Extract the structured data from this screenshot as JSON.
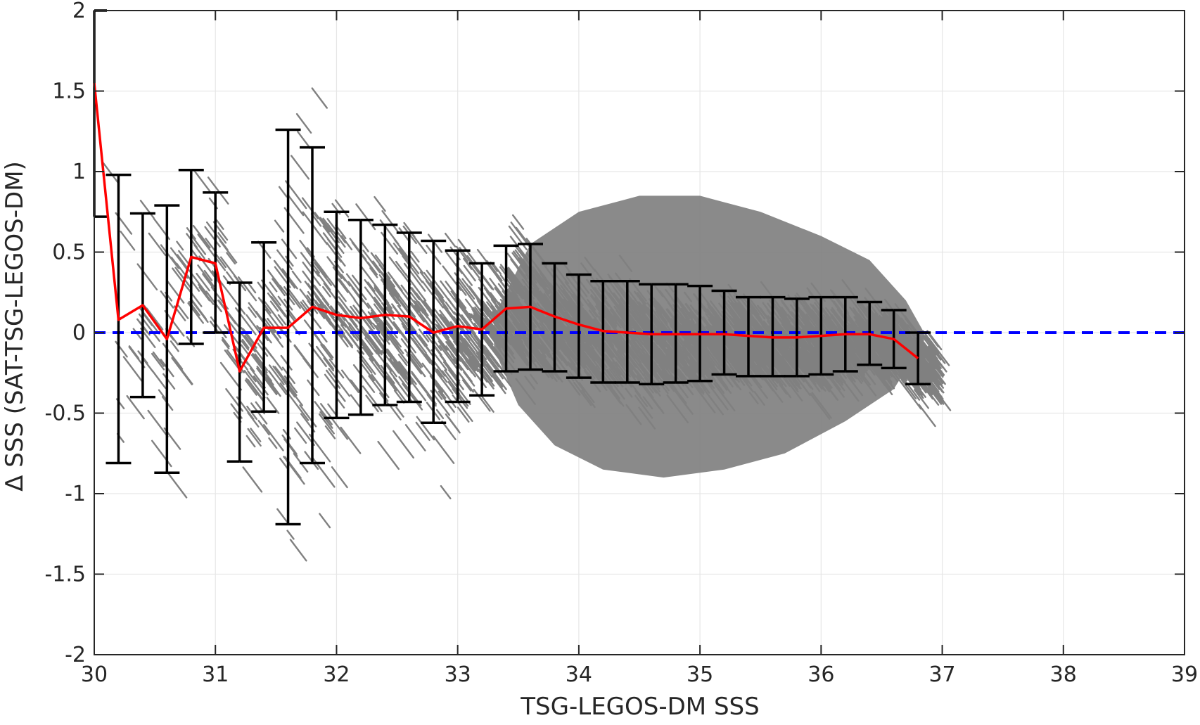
{
  "chart_data": {
    "type": "scatter",
    "xlabel": "TSG-LEGOS-DM SSS",
    "ylabel": "Δ SSS (SAT-TSG-LEGOS-DM)",
    "xlim": [
      30,
      39
    ],
    "ylim": [
      -2,
      2
    ],
    "x_ticks": [
      "30",
      "31",
      "32",
      "33",
      "34",
      "35",
      "36",
      "37",
      "38",
      "39"
    ],
    "y_ticks": [
      "-2",
      "-1.5",
      "-1",
      "-0.5",
      "0",
      "0.5",
      "1",
      "1.5",
      "2"
    ],
    "grid": true,
    "legend": "none",
    "reference_line": {
      "y": 0,
      "style": "dashed",
      "color": "#0000ff"
    },
    "colors": {
      "scatter": "#808080",
      "mean_line": "#ff0000",
      "error_bars": "#000000",
      "grid": "#e6e6e6",
      "axes": "#262626"
    },
    "binned_stats": {
      "x": [
        30.0,
        30.2,
        30.4,
        30.6,
        30.8,
        31.0,
        31.2,
        31.4,
        31.6,
        31.8,
        32.0,
        32.2,
        32.4,
        32.6,
        32.8,
        33.0,
        33.2,
        33.4,
        33.6,
        33.8,
        34.0,
        34.2,
        34.4,
        34.6,
        34.8,
        35.0,
        35.2,
        35.4,
        35.6,
        35.8,
        36.0,
        36.2,
        36.4,
        36.6,
        36.8
      ],
      "mean": [
        1.55,
        0.08,
        0.17,
        -0.04,
        0.47,
        0.43,
        -0.24,
        0.03,
        0.03,
        0.16,
        0.11,
        0.09,
        0.11,
        0.1,
        0.0,
        0.04,
        0.02,
        0.15,
        0.16,
        0.1,
        0.05,
        0.01,
        0.0,
        -0.01,
        -0.01,
        -0.01,
        -0.01,
        -0.02,
        -0.03,
        -0.03,
        -0.02,
        -0.01,
        -0.01,
        -0.04,
        -0.16
      ],
      "upper": [
        2.0,
        0.98,
        0.74,
        0.79,
        1.01,
        0.87,
        0.31,
        0.56,
        1.26,
        1.15,
        0.75,
        0.7,
        0.67,
        0.62,
        0.57,
        0.51,
        0.43,
        0.54,
        0.55,
        0.43,
        0.36,
        0.32,
        0.32,
        0.3,
        0.3,
        0.29,
        0.26,
        0.22,
        0.22,
        0.21,
        0.22,
        0.22,
        0.19,
        0.14,
        0.0
      ],
      "lower": [
        0.72,
        -0.81,
        -0.4,
        -0.87,
        -0.07,
        0.0,
        -0.8,
        -0.49,
        -1.19,
        -0.81,
        -0.53,
        -0.51,
        -0.45,
        -0.43,
        -0.56,
        -0.43,
        -0.39,
        -0.24,
        -0.23,
        -0.24,
        -0.28,
        -0.31,
        -0.31,
        -0.32,
        -0.31,
        -0.3,
        -0.26,
        -0.27,
        -0.27,
        -0.27,
        -0.26,
        -0.24,
        -0.2,
        -0.22,
        -0.32
      ]
    }
  }
}
